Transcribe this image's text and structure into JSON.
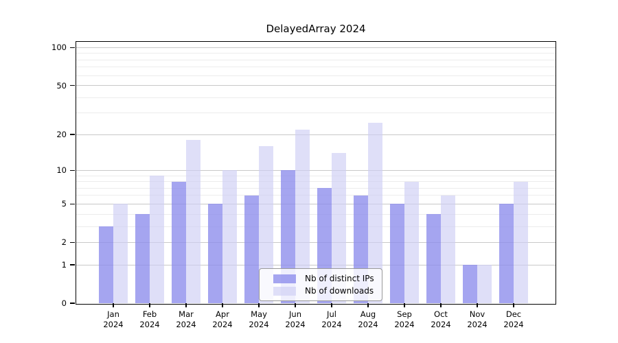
{
  "chart_data": {
    "type": "bar",
    "title": "DelayedArray 2024",
    "categories": [
      "Jan",
      "Feb",
      "Mar",
      "Apr",
      "May",
      "Jun",
      "Jul",
      "Aug",
      "Sep",
      "Oct",
      "Nov",
      "Dec"
    ],
    "x_year": "2024",
    "series": [
      {
        "name": "Nb of distinct IPs",
        "color": "#8c8cec",
        "opacity": 0.78,
        "values": [
          3,
          4,
          8,
          5,
          6,
          10,
          7,
          6,
          5,
          4,
          1,
          5
        ]
      },
      {
        "name": "Nb of downloads",
        "color": "#cecef5",
        "opacity": 0.65,
        "values": [
          5,
          9,
          18,
          10,
          16,
          22,
          14,
          25,
          8,
          6,
          1,
          8
        ]
      }
    ],
    "y_scale": "log1p",
    "ylim": [
      0,
      111
    ],
    "y_ticks": [
      0,
      1,
      2,
      5,
      10,
      20,
      50,
      100
    ],
    "y_minor_gridlines": [
      3,
      4,
      6,
      7,
      8,
      9,
      30,
      40,
      60,
      70,
      80,
      90
    ],
    "grid": true,
    "legend_position": "bottom-center",
    "colors": {
      "major_grid": "#c8c8c8",
      "minor_grid": "#ececec",
      "axis": "#000000",
      "background": "#ffffff"
    }
  }
}
